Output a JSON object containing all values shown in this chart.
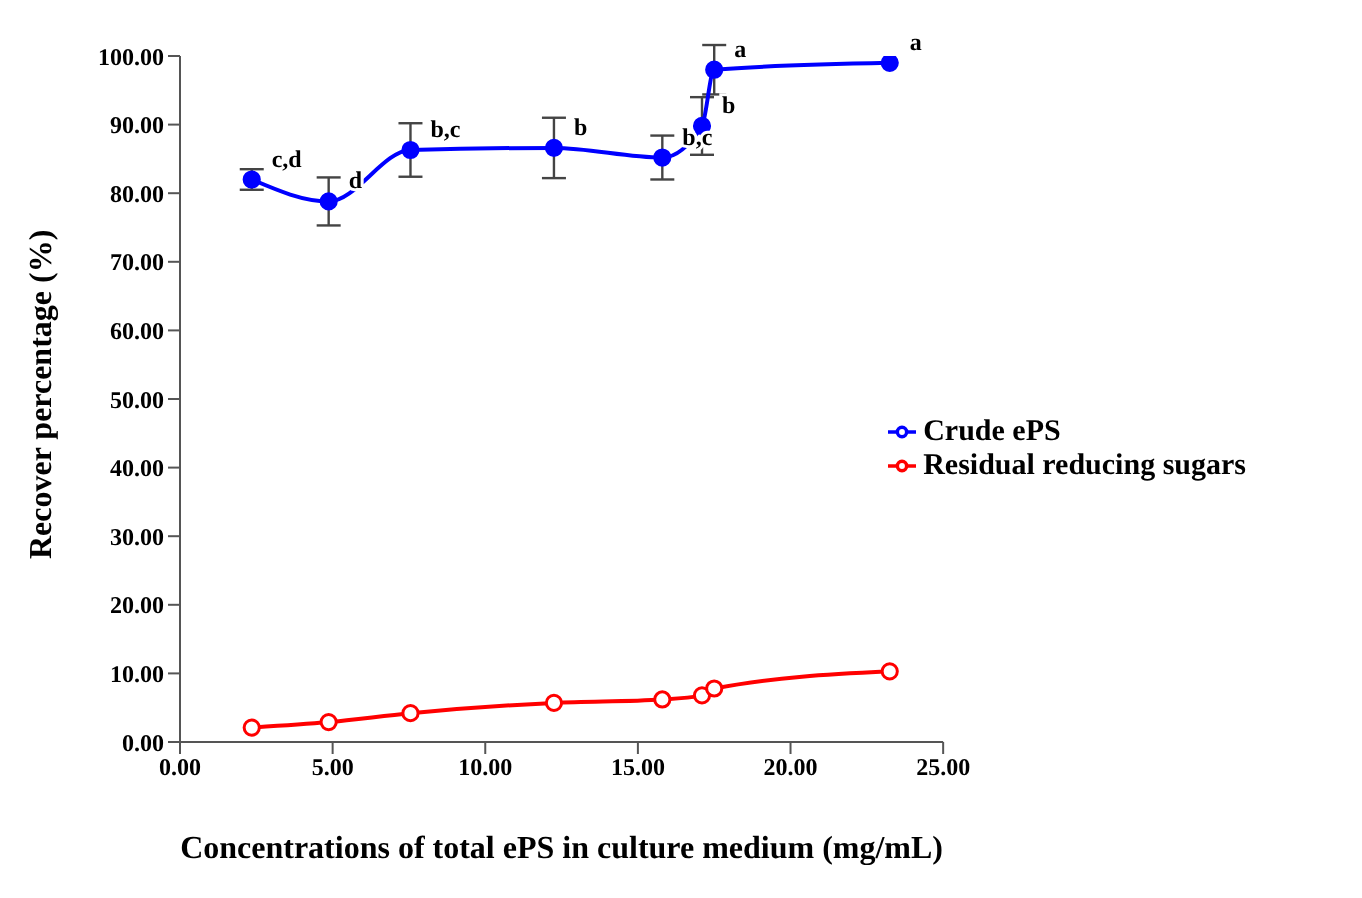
{
  "chart_data": {
    "type": "line",
    "xlabel": "Concentrations of total ePS in culture medium (mg/mL)",
    "ylabel": "Recover percentage (%)",
    "xlim": [
      0,
      25
    ],
    "xticks": [
      {
        "value": 0,
        "label": "0.00"
      },
      {
        "value": 5,
        "label": "5.00"
      },
      {
        "value": 10,
        "label": "10.00"
      },
      {
        "value": 15,
        "label": "15.00"
      },
      {
        "value": 20,
        "label": "20.00"
      },
      {
        "value": 25,
        "label": "25.00"
      }
    ],
    "ylim": [
      0,
      100
    ],
    "yticks": [
      {
        "value": 0,
        "label": "0.00"
      },
      {
        "value": 10,
        "label": "10.00"
      },
      {
        "value": 20,
        "label": "20.00"
      },
      {
        "value": 30,
        "label": "30.00"
      },
      {
        "value": 40,
        "label": "40.00"
      },
      {
        "value": 50,
        "label": "50.00"
      },
      {
        "value": 60,
        "label": "60.00"
      },
      {
        "value": 70,
        "label": "70.00"
      },
      {
        "value": 80,
        "label": "80.00"
      },
      {
        "value": 90,
        "label": "90.00"
      },
      {
        "value": 100,
        "label": "100.00"
      }
    ],
    "grid": false,
    "legend": "right",
    "line_style": "solid",
    "series": [
      {
        "name": "Crude ePS",
        "color": "#0000ff",
        "marker": "circle",
        "x": [
          2.35,
          4.87,
          7.55,
          12.25,
          15.8,
          17.1,
          17.5,
          23.25
        ],
        "values": [
          82,
          78.8,
          86.3,
          86.6,
          85.2,
          89.8,
          98,
          99
        ],
        "errors": [
          1.5,
          3.5,
          3.9,
          4.4,
          3.2,
          4.2,
          3.6,
          null
        ]
      },
      {
        "name": "Residual reducing sugars",
        "color": "#ff0000",
        "marker": "circle",
        "x": [
          2.35,
          4.87,
          7.55,
          12.25,
          15.8,
          17.1,
          17.5,
          23.25
        ],
        "values": [
          2.1,
          2.9,
          4.2,
          5.7,
          6.2,
          6.8,
          7.8,
          10.3
        ]
      }
    ],
    "annotations": [
      {
        "text": "c,d",
        "x": 2.35,
        "y": 82
      },
      {
        "text": "d",
        "x": 4.87,
        "y": 78.8
      },
      {
        "text": "b,c",
        "x": 7.55,
        "y": 86.3
      },
      {
        "text": "b",
        "x": 12.25,
        "y": 86.6
      },
      {
        "text": "b,c",
        "x": 15.8,
        "y": 85.2
      },
      {
        "text": "b",
        "x": 17.1,
        "y": 89.8
      },
      {
        "text": "a",
        "x": 17.5,
        "y": 98
      },
      {
        "text": "a",
        "x": 23.25,
        "y": 99
      }
    ]
  }
}
